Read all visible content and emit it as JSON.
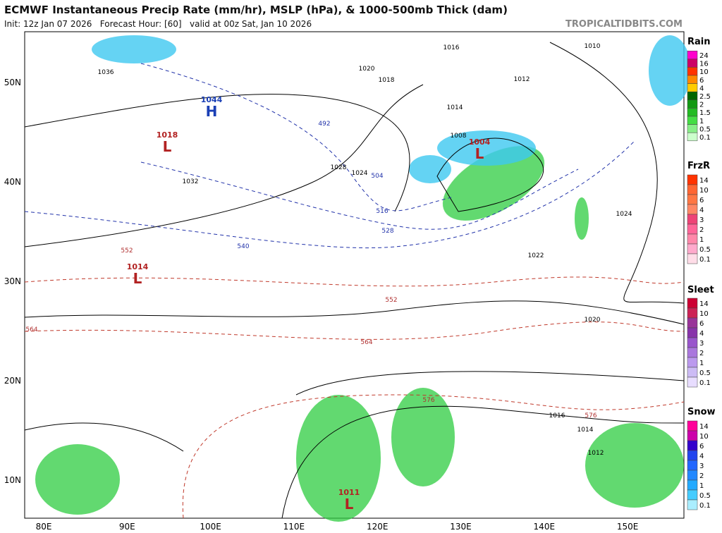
{
  "header": {
    "title": "ECMWF Instantaneous Precip Rate (mm/hr), MSLP (hPa), & 1000-500mb Thick (dam)",
    "subtitle": "Init: 12z Jan 07 2026   Forecast Hour: [60]   valid at 00z Sat, Jan 10 2026",
    "watermark": "TROPICALTIDBITS.COM"
  },
  "map": {
    "lat_labels": [
      "50N",
      "40N",
      "30N",
      "20N",
      "10N"
    ],
    "lon_labels": [
      "80E",
      "90E",
      "100E",
      "110E",
      "120E",
      "130E",
      "140E",
      "150E"
    ],
    "pressure_centers": [
      {
        "type": "H",
        "value": "1044"
      },
      {
        "type": "L",
        "value": "1018"
      },
      {
        "type": "L",
        "value": "1014"
      },
      {
        "type": "L",
        "value": "1004"
      },
      {
        "type": "L",
        "value": "1011"
      }
    ],
    "isobar_labels": [
      "1036",
      "1032",
      "1028",
      "1024",
      "1020",
      "1018",
      "1016",
      "1014",
      "1012",
      "1008",
      "1022",
      "1020",
      "1024",
      "1016",
      "1014",
      "1012",
      "1010"
    ],
    "thickness_labels": [
      "492",
      "504",
      "516",
      "528",
      "540",
      "552",
      "564",
      "576",
      "552",
      "564",
      "576"
    ]
  },
  "legend": [
    {
      "name": "Rain",
      "levels": [
        "24",
        "16",
        "10",
        "6",
        "4",
        "2.5",
        "2",
        "1.5",
        "1",
        "0.5",
        "0.1"
      ]
    },
    {
      "name": "FrzR",
      "levels": [
        "14",
        "10",
        "6",
        "4",
        "3",
        "2",
        "1",
        "0.5",
        "0.1"
      ]
    },
    {
      "name": "Sleet",
      "levels": [
        "14",
        "10",
        "6",
        "4",
        "3",
        "2",
        "1",
        "0.5",
        "0.1"
      ]
    },
    {
      "name": "Snow",
      "levels": [
        "14",
        "10",
        "6",
        "4",
        "3",
        "2",
        "1",
        "0.5",
        "0.1"
      ]
    }
  ]
}
